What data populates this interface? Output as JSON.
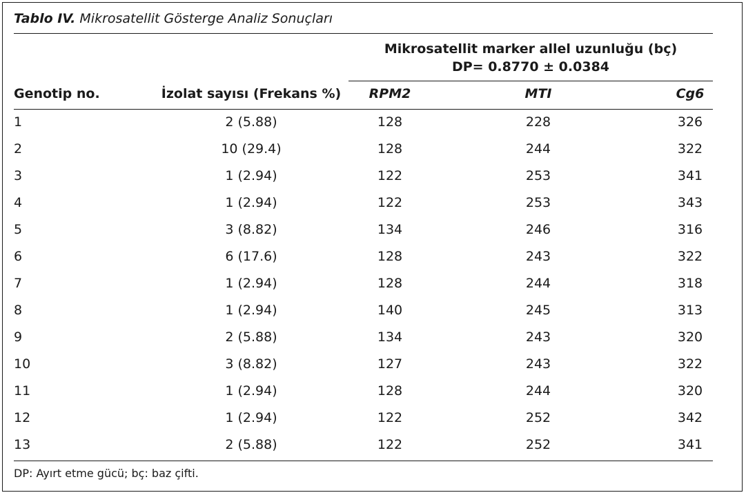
{
  "title": {
    "label": "Tablo IV.",
    "text": "Mikrosatellit Gösterge Analiz Sonuçları"
  },
  "span_header": {
    "line1": "Mikrosatellit marker allel uzunluğu (bç)",
    "line2": "DP= 0.8770 ± 0.0384"
  },
  "columns": [
    "Genotip no.",
    "İzolat sayısı (Frekans %)",
    "RPM2",
    "MTI",
    "Cg6"
  ],
  "rows": [
    [
      "1",
      "2 (5.88)",
      "128",
      "228",
      "326"
    ],
    [
      "2",
      "10 (29.4)",
      "128",
      "244",
      "322"
    ],
    [
      "3",
      "1 (2.94)",
      "122",
      "253",
      "341"
    ],
    [
      "4",
      "1 (2.94)",
      "122",
      "253",
      "343"
    ],
    [
      "5",
      "3 (8.82)",
      "134",
      "246",
      "316"
    ],
    [
      "6",
      "6 (17.6)",
      "128",
      "243",
      "322"
    ],
    [
      "7",
      "1 (2.94)",
      "128",
      "244",
      "318"
    ],
    [
      "8",
      "1 (2.94)",
      "140",
      "245",
      "313"
    ],
    [
      "9",
      "2 (5.88)",
      "134",
      "243",
      "320"
    ],
    [
      "10",
      "3 (8.82)",
      "127",
      "243",
      "322"
    ],
    [
      "11",
      "1 (2.94)",
      "128",
      "244",
      "320"
    ],
    [
      "12",
      "1 (2.94)",
      "122",
      "252",
      "342"
    ],
    [
      "13",
      "2 (5.88)",
      "122",
      "252",
      "341"
    ]
  ],
  "footnote": "DP: Ayırt etme gücü; bç: baz çifti."
}
